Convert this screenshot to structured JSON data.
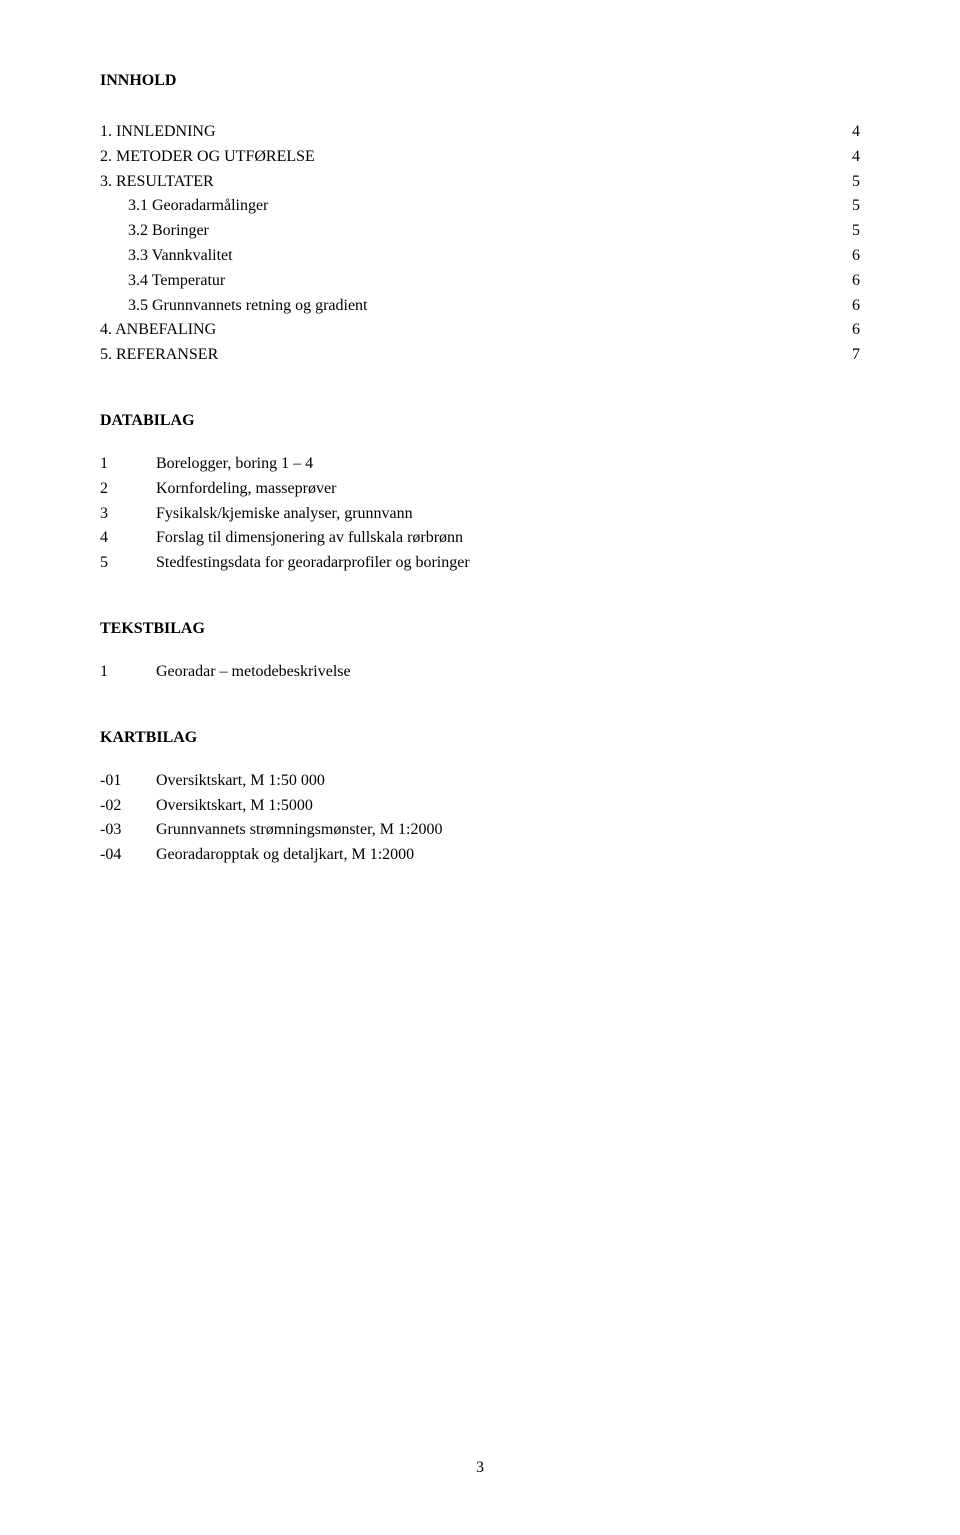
{
  "title": "INNHOLD",
  "toc": [
    {
      "label": "1.   INNLEDNING",
      "page": "4",
      "indent": 0
    },
    {
      "label": "2.   METODER OG UTFØRELSE",
      "page": "4",
      "indent": 0
    },
    {
      "label": "3.   RESULTATER",
      "page": "5",
      "indent": 0
    },
    {
      "label": "3.1   Georadarmålinger",
      "page": "5",
      "indent": 1
    },
    {
      "label": "3.2   Boringer",
      "page": "5",
      "indent": 1
    },
    {
      "label": "3.3   Vannkvalitet",
      "page": "6",
      "indent": 1
    },
    {
      "label": "3.4   Temperatur",
      "page": "6",
      "indent": 1
    },
    {
      "label": "3.5   Grunnvannets retning og gradient",
      "page": "6",
      "indent": 1
    },
    {
      "label": "4.   ANBEFALING",
      "page": "6",
      "indent": 0
    },
    {
      "label": "5.   REFERANSER",
      "page": "7",
      "indent": 0
    }
  ],
  "databilag": {
    "title": "DATABILAG",
    "items": [
      {
        "num": "1",
        "text": "Borelogger, boring 1 – 4"
      },
      {
        "num": "2",
        "text": "Kornfordeling, masseprøver"
      },
      {
        "num": "3",
        "text": "Fysikalsk/kjemiske analyser, grunnvann"
      },
      {
        "num": "4",
        "text": "Forslag til dimensjonering av fullskala rørbrønn"
      },
      {
        "num": "5",
        "text": "Stedfestingsdata for georadarprofiler og boringer"
      }
    ]
  },
  "tekstbilag": {
    "title": "TEKSTBILAG",
    "items": [
      {
        "num": "1",
        "text": "Georadar – metodebeskrivelse"
      }
    ]
  },
  "kartbilag": {
    "title": "KARTBILAG",
    "items": [
      {
        "num": "-01",
        "text": "Oversiktskart, M 1:50 000"
      },
      {
        "num": "-02",
        "text": "Oversiktskart, M 1:5000"
      },
      {
        "num": "-03",
        "text": "Grunnvannets strømningsmønster, M 1:2000"
      },
      {
        "num": "-04",
        "text": "Georadaropptak og detaljkart, M 1:2000"
      }
    ]
  },
  "page_number": "3"
}
